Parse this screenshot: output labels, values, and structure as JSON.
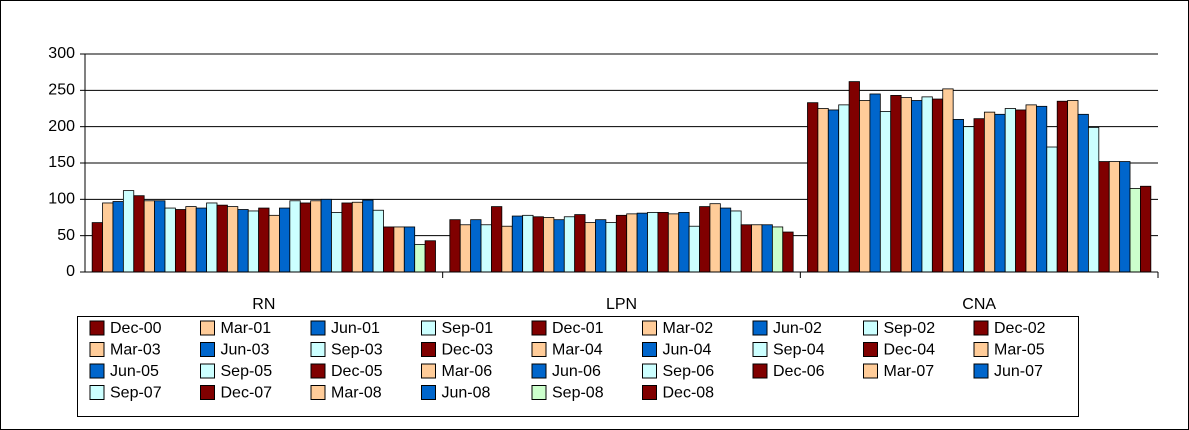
{
  "chart_data": {
    "type": "bar",
    "categories": [
      "RN",
      "LPN",
      "CNA"
    ],
    "ylim": [
      0,
      300
    ],
    "yticks": [
      0,
      50,
      100,
      150,
      200,
      250,
      300
    ],
    "grid": true,
    "legend": "bottom",
    "series": [
      {
        "name": "Dec-00",
        "color": "#800000",
        "values": [
          68,
          72,
          233
        ]
      },
      {
        "name": "Mar-01",
        "color": "#FFCC99",
        "values": [
          95,
          65,
          225
        ]
      },
      {
        "name": "Jun-01",
        "color": "#0066CC",
        "values": [
          97,
          72,
          223
        ]
      },
      {
        "name": "Sep-01",
        "color": "#CCFFFF",
        "values": [
          112,
          65,
          230
        ]
      },
      {
        "name": "Dec-01",
        "color": "#800000",
        "values": [
          105,
          90,
          262
        ]
      },
      {
        "name": "Mar-02",
        "color": "#FFCC99",
        "values": [
          98,
          63,
          236
        ]
      },
      {
        "name": "Jun-02",
        "color": "#0066CC",
        "values": [
          98,
          77,
          245
        ]
      },
      {
        "name": "Sep-02",
        "color": "#CCFFFF",
        "values": [
          88,
          78,
          221
        ]
      },
      {
        "name": "Dec-02",
        "color": "#800000",
        "values": [
          86,
          76,
          243
        ]
      },
      {
        "name": "Mar-03",
        "color": "#FFCC99",
        "values": [
          90,
          75,
          240
        ]
      },
      {
        "name": "Jun-03",
        "color": "#0066CC",
        "values": [
          88,
          72,
          236
        ]
      },
      {
        "name": "Sep-03",
        "color": "#CCFFFF",
        "values": [
          95,
          76,
          241
        ]
      },
      {
        "name": "Dec-03",
        "color": "#800000",
        "values": [
          92,
          79,
          238
        ]
      },
      {
        "name": "Mar-04",
        "color": "#FFCC99",
        "values": [
          90,
          68,
          252
        ]
      },
      {
        "name": "Jun-04",
        "color": "#0066CC",
        "values": [
          86,
          72,
          210
        ]
      },
      {
        "name": "Sep-04",
        "color": "#CCFFFF",
        "values": [
          84,
          68,
          200
        ]
      },
      {
        "name": "Dec-04",
        "color": "#800000",
        "values": [
          88,
          78,
          211
        ]
      },
      {
        "name": "Mar-05",
        "color": "#FFCC99",
        "values": [
          78,
          80,
          220
        ]
      },
      {
        "name": "Jun-05",
        "color": "#0066CC",
        "values": [
          88,
          81,
          217
        ]
      },
      {
        "name": "Sep-05",
        "color": "#CCFFFF",
        "values": [
          98,
          82,
          225
        ]
      },
      {
        "name": "Dec-05",
        "color": "#800000",
        "values": [
          95,
          82,
          223
        ]
      },
      {
        "name": "Mar-06",
        "color": "#FFCC99",
        "values": [
          98,
          80,
          230
        ]
      },
      {
        "name": "Jun-06",
        "color": "#0066CC",
        "values": [
          100,
          82,
          228
        ]
      },
      {
        "name": "Sep-06",
        "color": "#CCFFFF",
        "values": [
          82,
          63,
          172
        ]
      },
      {
        "name": "Dec-06",
        "color": "#800000",
        "values": [
          95,
          90,
          235
        ]
      },
      {
        "name": "Mar-07",
        "color": "#FFCC99",
        "values": [
          96,
          94,
          236
        ]
      },
      {
        "name": "Jun-07",
        "color": "#0066CC",
        "values": [
          99,
          88,
          217
        ]
      },
      {
        "name": "Sep-07",
        "color": "#CCFFFF",
        "values": [
          85,
          84,
          199
        ]
      },
      {
        "name": "Dec-07",
        "color": "#800000",
        "values": [
          62,
          65,
          152
        ]
      },
      {
        "name": "Mar-08",
        "color": "#FFCC99",
        "values": [
          62,
          65,
          152
        ]
      },
      {
        "name": "Jun-08",
        "color": "#0066CC",
        "values": [
          62,
          65,
          152
        ]
      },
      {
        "name": "Sep-08",
        "color": "#CCFFCC",
        "values": [
          38,
          62,
          115
        ]
      },
      {
        "name": "Dec-08",
        "color": "#800000",
        "values": [
          43,
          55,
          118
        ]
      }
    ]
  }
}
